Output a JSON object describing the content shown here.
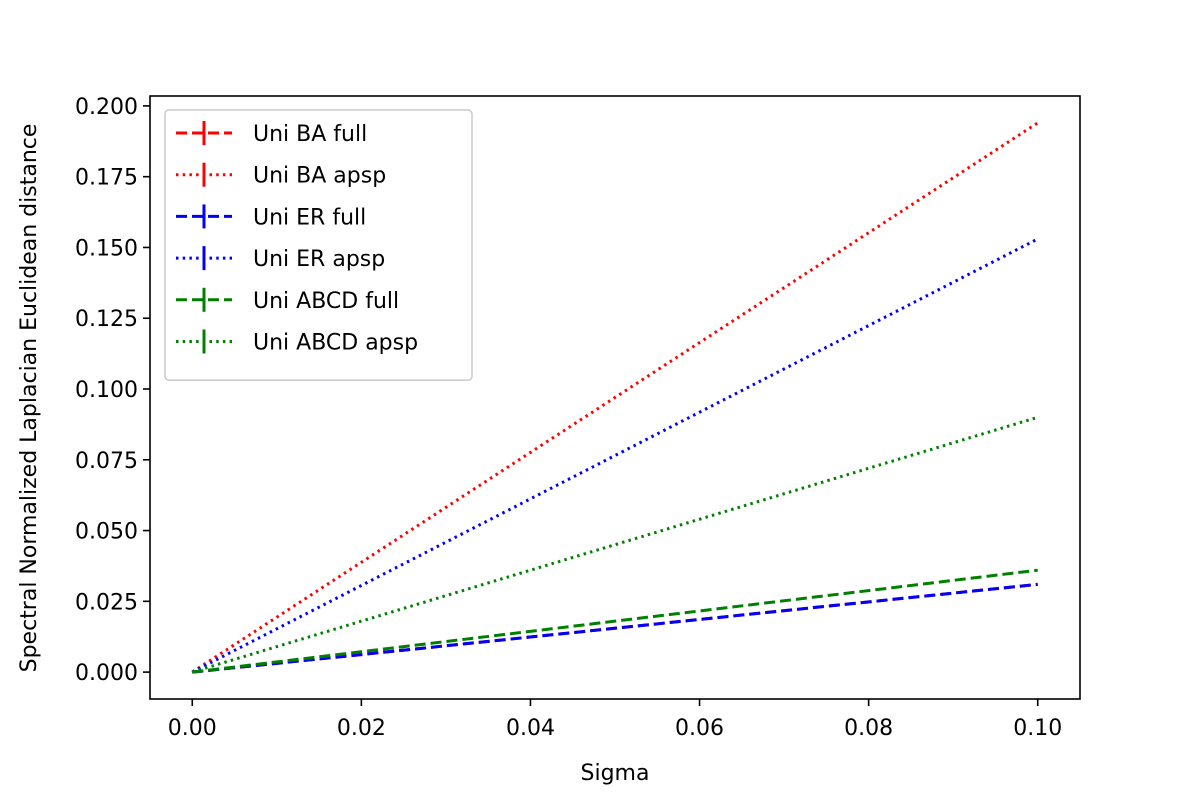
{
  "chart_data": {
    "type": "line",
    "title": "",
    "xlabel": "Sigma",
    "ylabel": "Spectral Normalized Laplacian Euclidean distance",
    "xlim": [
      -0.005,
      0.105
    ],
    "ylim": [
      -0.0095,
      0.2035
    ],
    "xticks": [
      0.0,
      0.02,
      0.04,
      0.06,
      0.08,
      0.1
    ],
    "xtick_labels": [
      "0.00",
      "0.02",
      "0.04",
      "0.06",
      "0.08",
      "0.10"
    ],
    "yticks": [
      0.0,
      0.025,
      0.05,
      0.075,
      0.1,
      0.125,
      0.15,
      0.175,
      0.2
    ],
    "ytick_labels": [
      "0.000",
      "0.025",
      "0.050",
      "0.075",
      "0.100",
      "0.125",
      "0.150",
      "0.175",
      "0.200"
    ],
    "grid": false,
    "legend_position": "top-left",
    "series": [
      {
        "name": "Uni BA full",
        "color": "#ff0000",
        "style": "dashed",
        "x": [
          0.0,
          0.1
        ],
        "y": [
          0.0,
          0.031
        ]
      },
      {
        "name": "Uni BA apsp",
        "color": "#ff0000",
        "style": "dotted",
        "x": [
          0.0,
          0.1
        ],
        "y": [
          0.0,
          0.194
        ]
      },
      {
        "name": "Uni ER full",
        "color": "#0000ff",
        "style": "dashed",
        "x": [
          0.0,
          0.1
        ],
        "y": [
          0.0,
          0.031
        ]
      },
      {
        "name": "Uni ER apsp",
        "color": "#0000ff",
        "style": "dotted",
        "x": [
          0.0,
          0.1
        ],
        "y": [
          0.0,
          0.153
        ]
      },
      {
        "name": "Uni ABCD full",
        "color": "#008000",
        "style": "dashed",
        "x": [
          0.0,
          0.1
        ],
        "y": [
          0.0,
          0.036
        ]
      },
      {
        "name": "Uni ABCD apsp",
        "color": "#008000",
        "style": "dotted",
        "x": [
          0.0,
          0.1
        ],
        "y": [
          0.0,
          0.09
        ]
      }
    ]
  }
}
